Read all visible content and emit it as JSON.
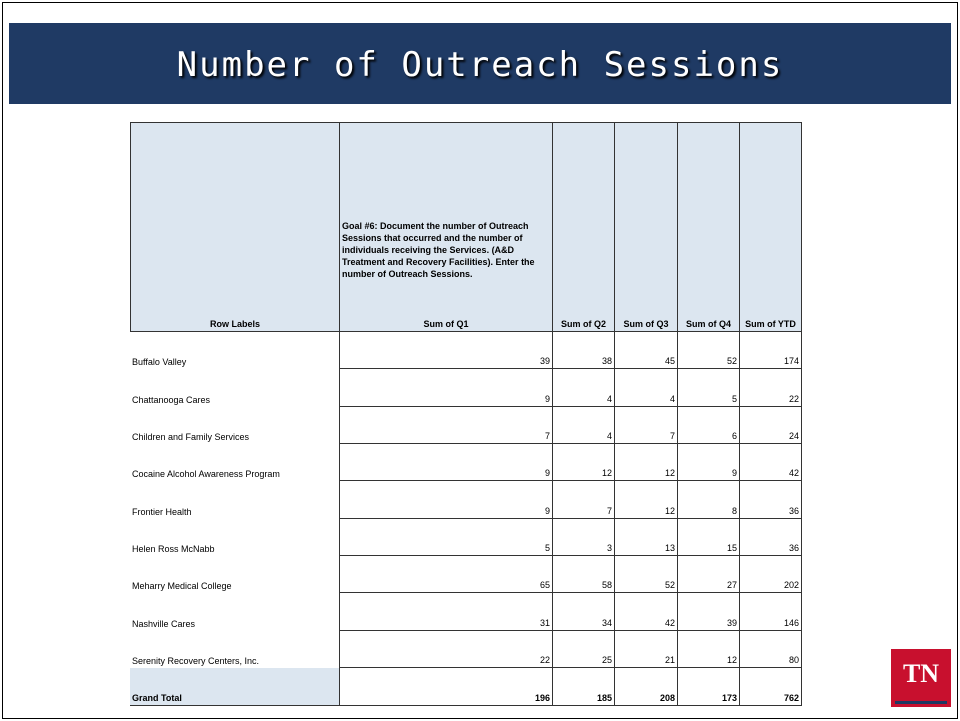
{
  "title": "Number of Outreach Sessions",
  "table": {
    "goal": "Goal #6:  Document the number of Outreach Sessions that occurred and the number of individuals receiving the Services.  (A&D Treatment and Recovery Facilities).  Enter the number of Outreach Sessions.",
    "columns": [
      "Row Labels",
      "Sum of Q1",
      "Sum of Q2",
      "Sum of Q3",
      "Sum of Q4",
      "Sum of YTD"
    ],
    "rows": [
      [
        "Buffalo Valley",
        39,
        38,
        45,
        52,
        174
      ],
      [
        "Chattanooga Cares",
        9,
        4,
        4,
        5,
        22
      ],
      [
        "Children and Family Services",
        7,
        4,
        7,
        6,
        24
      ],
      [
        "Cocaine Alcohol Awareness Program",
        9,
        12,
        12,
        9,
        42
      ],
      [
        "Frontier Health",
        9,
        7,
        12,
        8,
        36
      ],
      [
        "Helen Ross McNabb",
        5,
        3,
        13,
        15,
        36
      ],
      [
        "Meharry Medical College",
        65,
        58,
        52,
        27,
        202
      ],
      [
        "Nashville Cares",
        31,
        34,
        42,
        39,
        146
      ],
      [
        "Serenity Recovery Centers, Inc.",
        22,
        25,
        21,
        12,
        80
      ]
    ],
    "total": [
      "Grand Total",
      196,
      185,
      208,
      173,
      762
    ]
  },
  "logo": "TN"
}
